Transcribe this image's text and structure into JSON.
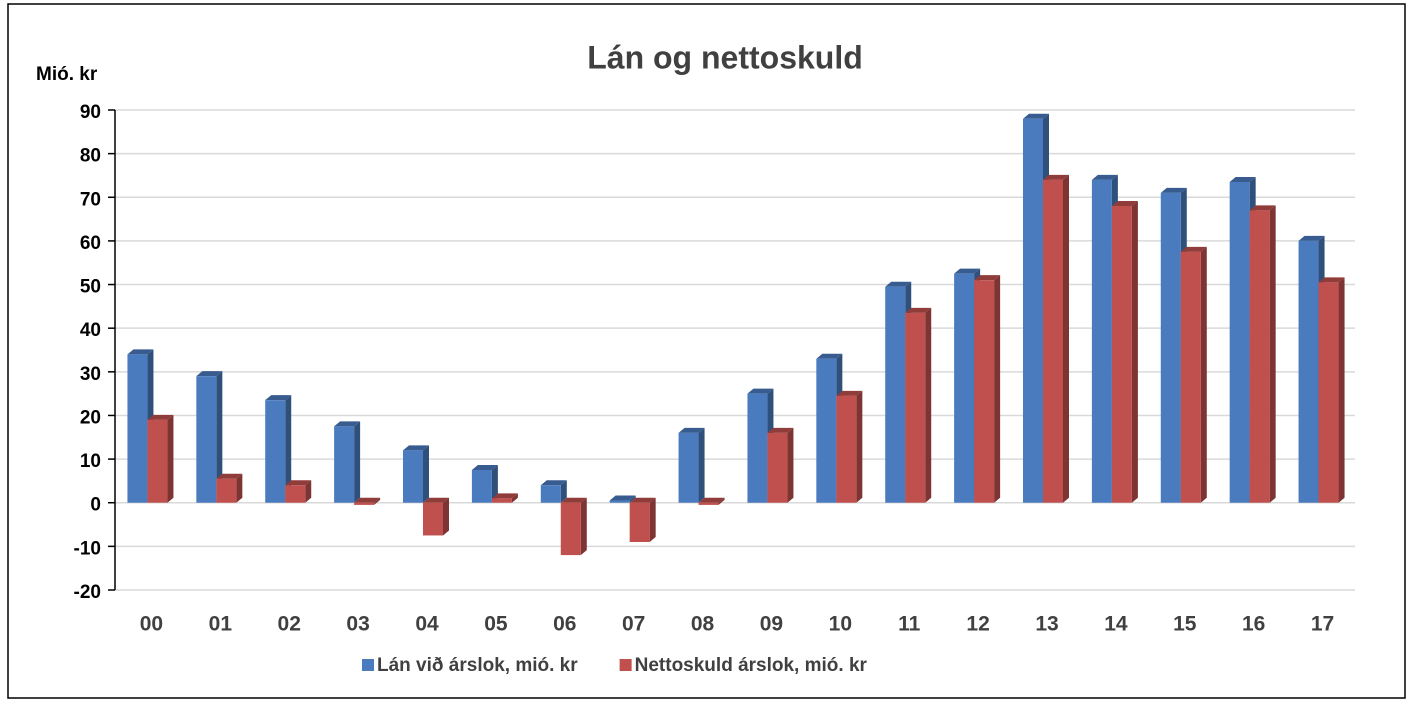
{
  "chart_data": {
    "type": "bar3d",
    "title": "Lán og nettoskuld",
    "y_label": "Mió. kr",
    "categories": [
      "00",
      "01",
      "02",
      "03",
      "04",
      "05",
      "06",
      "07",
      "08",
      "09",
      "10",
      "11",
      "12",
      "13",
      "14",
      "15",
      "16",
      "17"
    ],
    "series": [
      {
        "name": "Lán við árslok, mió. kr",
        "color": "#4a7bbf",
        "values": [
          34,
          29,
          23.5,
          17.5,
          12,
          7.5,
          4,
          0.5,
          16,
          25,
          33,
          49.5,
          52.5,
          88,
          74,
          71,
          73.5,
          60
        ]
      },
      {
        "name": "Nettoskuld árslok, mió. kr",
        "color": "#c0504d",
        "values": [
          19,
          5.5,
          4,
          -0.5,
          -7.5,
          1,
          -12,
          -9,
          -0.5,
          16,
          24.5,
          43.5,
          51,
          74,
          68,
          57.5,
          67,
          50.5
        ]
      }
    ],
    "ylim": [
      -20,
      90
    ],
    "yticks": [
      -20,
      -10,
      0,
      10,
      20,
      30,
      40,
      50,
      60,
      70,
      80,
      90
    ],
    "grid": true,
    "legend": "bottom"
  }
}
